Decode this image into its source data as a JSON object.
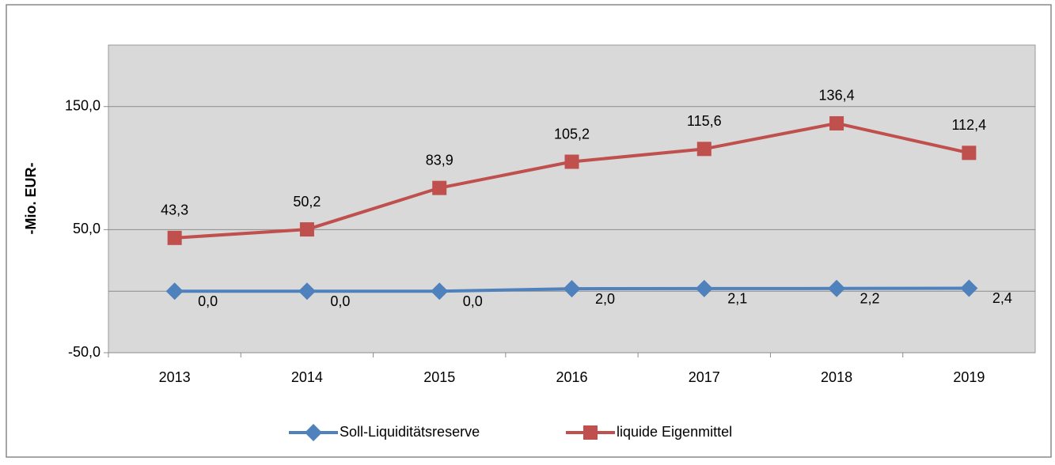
{
  "chart_data": {
    "type": "line",
    "y_axis_label": "-Mio. EUR-",
    "categories": [
      "2013",
      "2014",
      "2015",
      "2016",
      "2017",
      "2018",
      "2019"
    ],
    "series": [
      {
        "name": "Soll-Liquiditätsreserve",
        "color": "#4f81bd",
        "marker": "diamond",
        "values": [
          0,
          0,
          0,
          2.0,
          2.1,
          2.2,
          2.4
        ],
        "value_labels": [
          "0,0",
          "0,0",
          "0,0",
          "2,0",
          "2,1",
          "2,2",
          "2,4"
        ]
      },
      {
        "name": "liquide Eigenmittel",
        "color": "#c0504d",
        "marker": "square",
        "values": [
          43.3,
          50.2,
          83.9,
          105.2,
          115.6,
          136.4,
          112.4
        ],
        "value_labels": [
          "43,3",
          "50,2",
          "83,9",
          "105,2",
          "115,6",
          "136,4",
          "112,4"
        ]
      }
    ],
    "ylim": [
      -50,
      200
    ],
    "yticks": [
      {
        "value": -50,
        "label": "-50,0"
      },
      {
        "value": 50,
        "label": "50,0"
      },
      {
        "value": 150,
        "label": "150,0"
      }
    ],
    "grid": true,
    "legend": "bottom"
  }
}
